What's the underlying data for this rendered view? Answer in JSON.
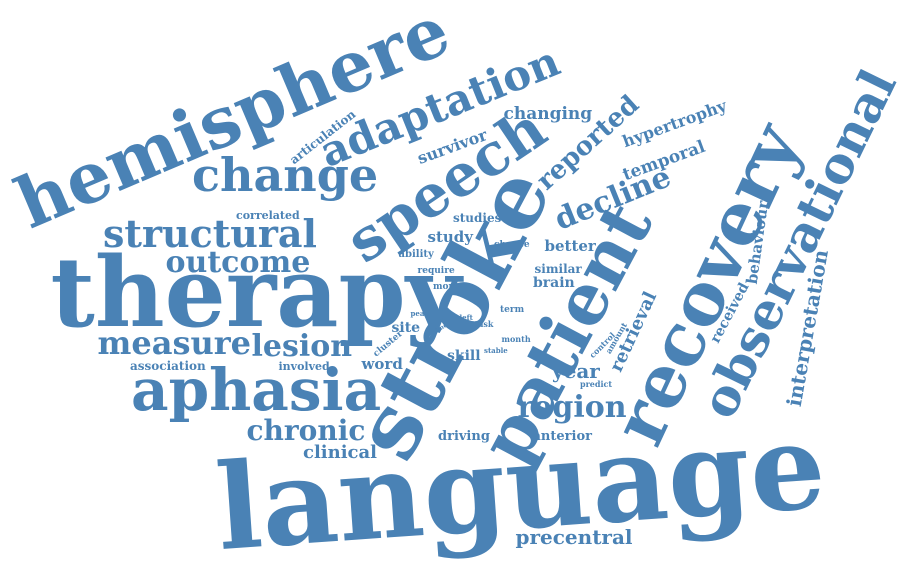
{
  "word_cloud": {
    "color": "#4a82b5",
    "background": "#ffffff",
    "words": [
      {
        "text": "language",
        "weight": 100
      },
      {
        "text": "therapy",
        "weight": 74
      },
      {
        "text": "stroke",
        "weight": 72
      },
      {
        "text": "hemisphere",
        "weight": 66
      },
      {
        "text": "recovery",
        "weight": 62
      },
      {
        "text": "patient",
        "weight": 60
      },
      {
        "text": "speech",
        "weight": 54
      },
      {
        "text": "aphasia",
        "weight": 50
      },
      {
        "text": "observational",
        "weight": 46
      },
      {
        "text": "change",
        "weight": 44
      },
      {
        "text": "adaptation",
        "weight": 40
      },
      {
        "text": "structural",
        "weight": 38
      },
      {
        "text": "measure",
        "weight": 32
      },
      {
        "text": "outcome",
        "weight": 30
      },
      {
        "text": "lesion",
        "weight": 28
      },
      {
        "text": "decline",
        "weight": 28
      },
      {
        "text": "region",
        "weight": 28
      },
      {
        "text": "chronic",
        "weight": 26
      },
      {
        "text": "reported",
        "weight": 24
      },
      {
        "text": "interpretation",
        "weight": 22
      },
      {
        "text": "precentral",
        "weight": 20
      },
      {
        "text": "retrieval",
        "weight": 18
      },
      {
        "text": "clinical",
        "weight": 18
      },
      {
        "text": "changing",
        "weight": 18
      },
      {
        "text": "survivor",
        "weight": 16
      },
      {
        "text": "temporal",
        "weight": 16
      },
      {
        "text": "year",
        "weight": 16
      },
      {
        "text": "behaviour",
        "weight": 15
      },
      {
        "text": "received",
        "weight": 14
      },
      {
        "text": "hypertrophy",
        "weight": 14
      },
      {
        "text": "study",
        "weight": 14
      },
      {
        "text": "better",
        "weight": 14
      },
      {
        "text": "word",
        "weight": 14
      },
      {
        "text": "skill",
        "weight": 14
      },
      {
        "text": "association",
        "weight": 12
      },
      {
        "text": "anterior",
        "weight": 12
      },
      {
        "text": "driving",
        "weight": 12
      },
      {
        "text": "studies",
        "weight": 12
      },
      {
        "text": "articulation",
        "weight": 11
      },
      {
        "text": "site",
        "weight": 12
      },
      {
        "text": "brain",
        "weight": 12
      },
      {
        "text": "involved",
        "weight": 11
      },
      {
        "text": "similar",
        "weight": 11
      },
      {
        "text": "correlated",
        "weight": 10
      },
      {
        "text": "ability",
        "weight": 9
      },
      {
        "text": "require",
        "weight": 8
      },
      {
        "text": "more",
        "weight": 8
      },
      {
        "text": "cluster",
        "weight": 8
      },
      {
        "text": "chance",
        "weight": 8
      },
      {
        "text": "term",
        "weight": 8
      },
      {
        "text": "task",
        "weight": 8
      },
      {
        "text": "month",
        "weight": 8
      },
      {
        "text": "amount",
        "weight": 7
      },
      {
        "text": "control",
        "weight": 7
      },
      {
        "text": "predict",
        "weight": 7
      },
      {
        "text": "stable",
        "weight": 7
      },
      {
        "text": "peak",
        "weight": 6
      },
      {
        "text": "left",
        "weight": 6
      },
      {
        "text": "time",
        "weight": 5
      },
      {
        "text": "fluid",
        "weight": 5
      }
    ]
  }
}
